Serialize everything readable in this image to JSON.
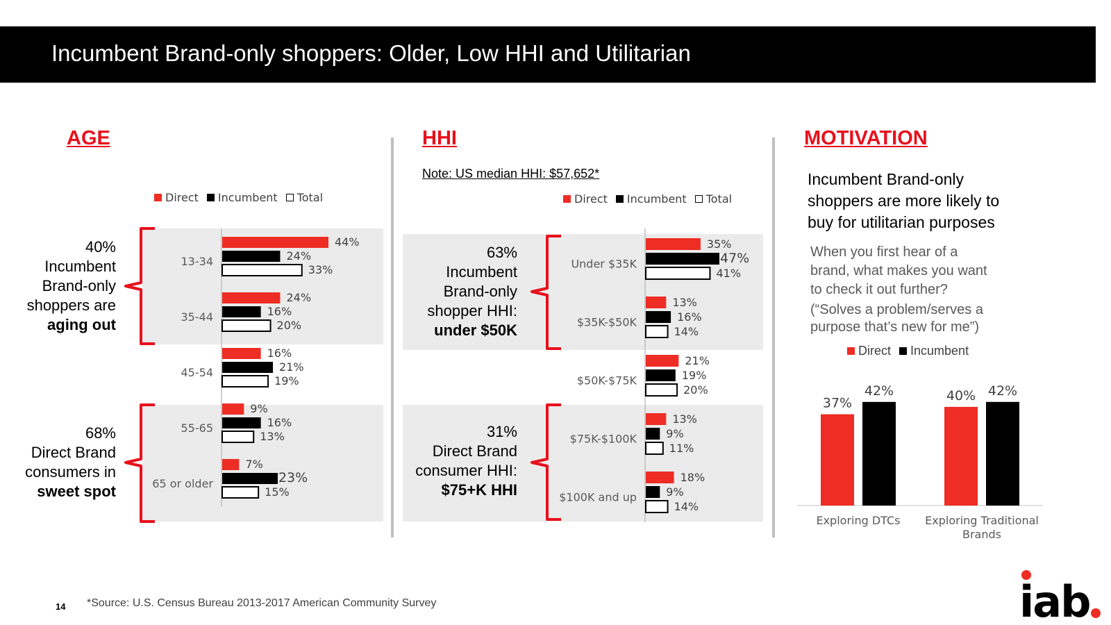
{
  "title": "Incumbent Brand-only shoppers: Older, Low HHI and Utilitarian",
  "legend": {
    "direct": "Direct",
    "incumbent": "Incumbent",
    "total": "Total"
  },
  "colors": {
    "direct": "#ee2d24",
    "incumbent": "#000000",
    "total": "#ffffff",
    "accent": "#e8101c",
    "band": "#ebebeb"
  },
  "age": {
    "heading": "AGE",
    "callout_top": {
      "line1": "40%",
      "line2": "Incumbent",
      "line3": "Brand-only",
      "line4": "shoppers are",
      "line5": "aging out"
    },
    "callout_bottom": {
      "line1": "68%",
      "line2": "Direct Brand",
      "line3": "consumers in",
      "line4": "sweet spot"
    }
  },
  "hhi": {
    "heading": "HHI",
    "note": "Note:  US median HHI: $57,652*",
    "callout_top": {
      "line1": "63%",
      "line2": "Incumbent",
      "line3": "Brand-only",
      "line4": "shopper HHI:",
      "line5": "under $50K"
    },
    "callout_bottom": {
      "line1": "31%",
      "line2": "Direct Brand",
      "line3": "consumer HHI:",
      "line4": "$75+K HHI"
    }
  },
  "motivation": {
    "heading": "MOTIVATION",
    "headline": {
      "line1": "Incumbent Brand-only",
      "line2": "shoppers are more likely to",
      "line3": "buy for utilitarian purposes"
    },
    "question": {
      "line1": "When you first hear of a",
      "line2": "brand, what makes you want",
      "line3": "to check it out further?"
    },
    "answer": {
      "line1": "(“Solves a problem/serves a",
      "line2": "purpose that’s new for me”)"
    }
  },
  "chart_data": [
    {
      "type": "bar",
      "orientation": "horizontal",
      "title": "AGE",
      "categories": [
        "13-34",
        "35-44",
        "45-54",
        "55-65",
        "65 or older"
      ],
      "series": [
        {
          "name": "Direct",
          "values": [
            44,
            24,
            16,
            9,
            7
          ]
        },
        {
          "name": "Incumbent",
          "values": [
            24,
            16,
            21,
            16,
            23
          ]
        },
        {
          "name": "Total",
          "values": [
            33,
            20,
            19,
            13,
            15
          ]
        }
      ],
      "unit": "%",
      "xlim": [
        0,
        50
      ]
    },
    {
      "type": "bar",
      "orientation": "horizontal",
      "title": "HHI",
      "categories": [
        "Under $35K",
        "$35K-$50K",
        "$50K-$75K",
        "$75K-$100K",
        "$100K and up"
      ],
      "series": [
        {
          "name": "Direct",
          "values": [
            35,
            13,
            21,
            13,
            18
          ]
        },
        {
          "name": "Incumbent",
          "values": [
            47,
            16,
            19,
            9,
            9
          ]
        },
        {
          "name": "Total",
          "values": [
            41,
            14,
            20,
            11,
            14
          ]
        }
      ],
      "unit": "%",
      "xlim": [
        0,
        50
      ]
    },
    {
      "type": "bar",
      "orientation": "vertical",
      "title": "MOTIVATION",
      "categories": [
        "Exploring DTCs",
        "Exploring Traditional Brands"
      ],
      "category_lines": [
        [
          "Exploring DTCs"
        ],
        [
          "Exploring Traditional",
          "Brands"
        ]
      ],
      "series": [
        {
          "name": "Direct",
          "values": [
            37,
            40
          ]
        },
        {
          "name": "Incumbent",
          "values": [
            42,
            42
          ]
        }
      ],
      "unit": "%",
      "ylim": [
        0,
        47
      ]
    }
  ],
  "footer": {
    "source": "*Source:  U.S. Census Bureau 2013-2017 American Community Survey",
    "page_number": "14",
    "logo_text": "iab"
  }
}
